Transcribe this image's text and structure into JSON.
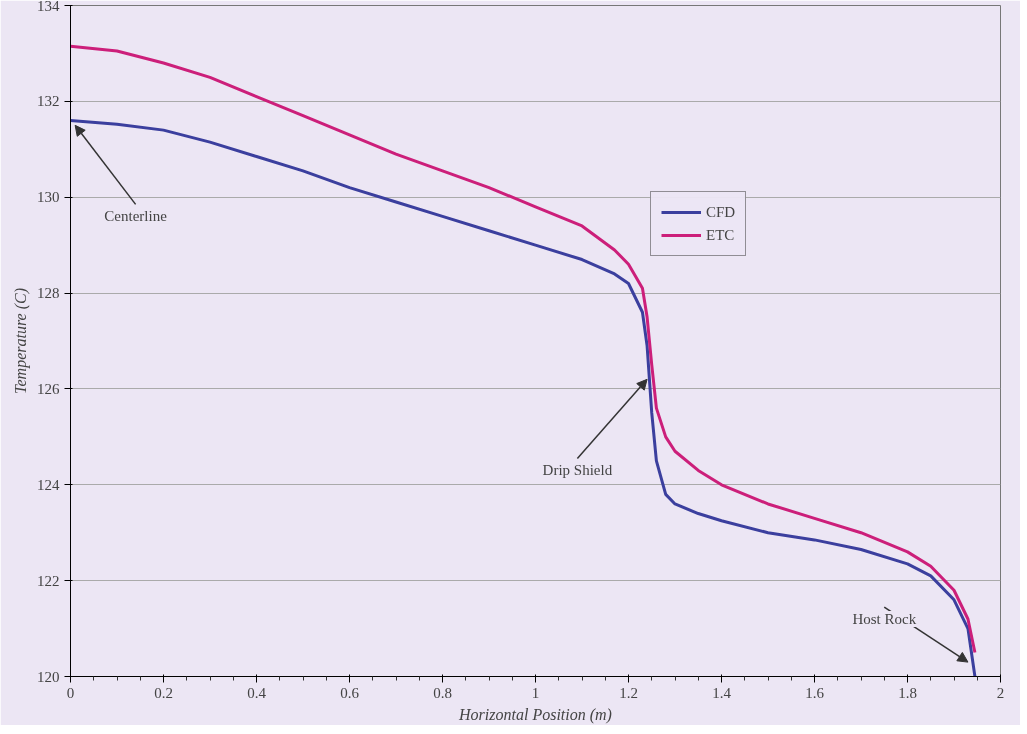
{
  "chart_data": {
    "type": "line",
    "xlabel": "Horizontal Position (m)",
    "ylabel": "Temperature (C)",
    "x": [
      0,
      0.1,
      0.2,
      0.3,
      0.4,
      0.5,
      0.6,
      0.7,
      0.8,
      0.9,
      1.0,
      1.1,
      1.17,
      1.2,
      1.23,
      1.24,
      1.25,
      1.26,
      1.28,
      1.3,
      1.35,
      1.4,
      1.5,
      1.6,
      1.7,
      1.8,
      1.85,
      1.9,
      1.93,
      1.945
    ],
    "series": [
      {
        "name": "CFD",
        "color": "#3b3f9e",
        "values": [
          131.6,
          131.52,
          131.4,
          131.15,
          130.85,
          130.55,
          130.2,
          129.9,
          129.6,
          129.3,
          129.0,
          128.7,
          128.4,
          128.2,
          127.6,
          126.9,
          125.5,
          124.5,
          123.8,
          123.6,
          123.4,
          123.25,
          123.0,
          122.85,
          122.65,
          122.35,
          122.1,
          121.6,
          121.0,
          120.0
        ]
      },
      {
        "name": "ETC",
        "color": "#cc1f7a",
        "values": [
          133.15,
          133.05,
          132.8,
          132.5,
          132.1,
          131.7,
          131.3,
          130.9,
          130.55,
          130.2,
          129.8,
          129.4,
          128.9,
          128.6,
          128.1,
          127.5,
          126.5,
          125.6,
          125.0,
          124.7,
          124.3,
          124.0,
          123.6,
          123.3,
          123.0,
          122.6,
          122.3,
          121.8,
          121.2,
          120.5
        ]
      }
    ],
    "xlim": [
      0,
      2
    ],
    "xticks": [
      0,
      0.2,
      0.4,
      0.6,
      0.8,
      1,
      1.2,
      1.4,
      1.6,
      1.8,
      2
    ],
    "ylim": [
      120,
      134
    ],
    "yticks": [
      120,
      122,
      124,
      126,
      128,
      130,
      132,
      134
    ],
    "grid": "y",
    "legend": "right",
    "marker": "none",
    "line_style": "solid",
    "annotations": [
      {
        "text": "Centerline",
        "x": 0.01,
        "y": 131.5
      },
      {
        "text": "Drip Shield",
        "x": 1.24,
        "y": 126.2
      },
      {
        "text": "Host Rock",
        "x": 1.93,
        "y": 120.3
      }
    ]
  }
}
